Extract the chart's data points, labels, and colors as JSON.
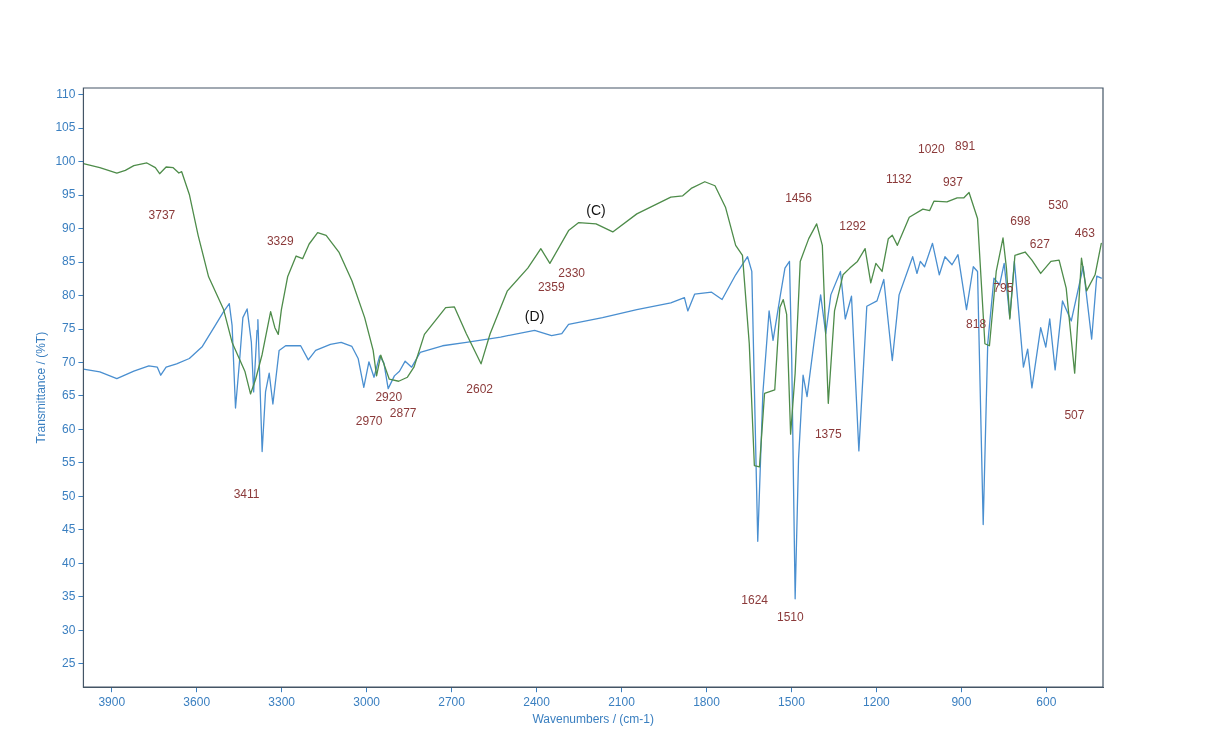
{
  "chart_data": {
    "type": "line",
    "xlabel": "Wavenumbers / (cm-1)",
    "ylabel": "Transmittance / (%T)",
    "xlim": [
      4000,
      400
    ],
    "ylim": [
      21.5,
      111
    ],
    "xticks": [
      3900,
      3600,
      3300,
      3000,
      2700,
      2400,
      2100,
      1800,
      1500,
      1200,
      900,
      600
    ],
    "yticks": [
      25,
      30,
      35,
      40,
      45,
      50,
      55,
      60,
      65,
      70,
      75,
      80,
      85,
      90,
      95,
      100,
      105,
      110
    ],
    "grid": false,
    "legend": false,
    "marker": "none",
    "line_style": "solid",
    "series": [
      {
        "name": "(C)",
        "color": "#4e8c4a",
        "x": [
          4000,
          3942,
          3882,
          3852,
          3822,
          3776,
          3746,
          3731,
          3708,
          3683,
          3663,
          3653,
          3626,
          3595,
          3558,
          3505,
          3475,
          3430,
          3410,
          3392,
          3369,
          3339,
          3324,
          3312,
          3301,
          3279,
          3249,
          3226,
          3203,
          3173,
          3143,
          3098,
          3052,
          3007,
          2977,
          2965,
          2950,
          2935,
          2920,
          2887,
          2856,
          2833,
          2796,
          2721,
          2690,
          2648,
          2596,
          2564,
          2503,
          2431,
          2385,
          2353,
          2287,
          2251,
          2190,
          2131,
          2046,
          1926,
          1884,
          1854,
          1806,
          1770,
          1733,
          1697,
          1673,
          1649,
          1631,
          1613,
          1595,
          1559,
          1541,
          1529,
          1517,
          1503,
          1487,
          1469,
          1439,
          1411,
          1391,
          1370,
          1348,
          1318,
          1294,
          1267,
          1240,
          1220,
          1202,
          1180,
          1158,
          1144,
          1126,
          1084,
          1036,
          1012,
          997,
          951,
          915,
          891,
          873,
          843,
          817,
          801,
          777,
          753,
          741,
          729,
          711,
          675,
          651,
          620,
          584,
          555,
          530,
          500,
          476,
          458,
          428,
          406
        ],
        "values": [
          99.7,
          99.1,
          98.3,
          98.7,
          99.4,
          99.8,
          99.1,
          98.2,
          99.2,
          99.1,
          98.3,
          98.5,
          95.1,
          89.0,
          82.8,
          77.9,
          73.0,
          68.7,
          65.3,
          67.5,
          71.2,
          77.6,
          75.2,
          74.2,
          77.9,
          82.8,
          85.9,
          85.5,
          87.7,
          89.4,
          89.0,
          86.5,
          82.2,
          76.7,
          71.8,
          68.0,
          71.1,
          69.3,
          67.5,
          67.2,
          67.8,
          69.3,
          74.2,
          78.2,
          78.3,
          74.3,
          69.8,
          74.3,
          80.7,
          84.1,
          87.0,
          84.8,
          89.7,
          90.9,
          90.7,
          89.5,
          92.2,
          94.7,
          94.9,
          96.0,
          97.0,
          96.4,
          93.2,
          87.5,
          86.0,
          72.8,
          54.6,
          54.4,
          65.4,
          65.9,
          78.2,
          79.4,
          77.2,
          59.3,
          68.4,
          85.1,
          88.5,
          90.7,
          87.5,
          63.9,
          77.7,
          83.1,
          84.1,
          85.1,
          87.0,
          81.9,
          84.8,
          83.6,
          88.5,
          89.0,
          87.5,
          91.7,
          92.9,
          92.7,
          94.1,
          94.0,
          94.6,
          94.6,
          95.4,
          91.5,
          72.8,
          72.5,
          83.6,
          88.6,
          84.1,
          76.5,
          86.0,
          86.5,
          85.3,
          83.3,
          85.1,
          85.3,
          81.1,
          68.4,
          85.6,
          80.7,
          83.1,
          87.8
        ]
      },
      {
        "name": "(D)",
        "color": "#4a8fd0",
        "x": [
          4000,
          3942,
          3882,
          3822,
          3769,
          3739,
          3727,
          3708,
          3671,
          3626,
          3580,
          3535,
          3505,
          3485,
          3475,
          3463,
          3448,
          3437,
          3422,
          3407,
          3399,
          3387,
          3384,
          3369,
          3357,
          3344,
          3331,
          3309,
          3286,
          3233,
          3206,
          3180,
          3128,
          3090,
          3052,
          3030,
          3010,
          2992,
          2974,
          2954,
          2939,
          2924,
          2902,
          2884,
          2864,
          2841,
          2811,
          2732,
          2648,
          2527,
          2407,
          2347,
          2311,
          2287,
          2167,
          2046,
          1926,
          1878,
          1866,
          1842,
          1782,
          1745,
          1697,
          1655,
          1640,
          1619,
          1601,
          1579,
          1565,
          1539,
          1523,
          1507,
          1499,
          1487,
          1475,
          1459,
          1445,
          1421,
          1397,
          1379,
          1361,
          1327,
          1310,
          1288,
          1262,
          1234,
          1198,
          1174,
          1144,
          1120,
          1072,
          1057,
          1045,
          1030,
          1002,
          978,
          958,
          933,
          912,
          882,
          858,
          843,
          823,
          807,
          785,
          765,
          749,
          729,
          713,
          681,
          666,
          651,
          620,
          602,
          588,
          569,
          543,
          512,
          470,
          440,
          422,
          406
        ],
        "values": [
          69.0,
          68.6,
          67.6,
          68.7,
          69.5,
          69.3,
          68.1,
          69.3,
          69.8,
          70.6,
          72.4,
          75.5,
          77.6,
          78.8,
          75.5,
          63.2,
          70.6,
          76.7,
          78.0,
          73.0,
          65.6,
          74.8,
          76.4,
          56.7,
          65.6,
          68.4,
          63.8,
          71.8,
          72.5,
          72.5,
          70.4,
          71.8,
          72.7,
          73.0,
          72.4,
          70.6,
          66.3,
          70.1,
          67.8,
          71.0,
          69.9,
          66.1,
          68.0,
          68.7,
          70.2,
          69.3,
          71.5,
          72.5,
          73.0,
          73.8,
          74.8,
          74.0,
          74.3,
          75.7,
          76.7,
          77.9,
          78.9,
          79.7,
          77.7,
          80.2,
          80.5,
          79.4,
          83.1,
          85.8,
          83.6,
          43.3,
          65.4,
          77.7,
          73.3,
          80.1,
          84.1,
          85.1,
          70.3,
          34.7,
          55.6,
          68.1,
          64.9,
          72.8,
          80.1,
          74.3,
          80.1,
          83.6,
          76.5,
          79.9,
          56.8,
          78.4,
          79.2,
          82.4,
          70.3,
          80.1,
          85.8,
          83.3,
          85.1,
          84.3,
          87.8,
          83.1,
          85.8,
          84.6,
          86.1,
          77.9,
          84.3,
          83.6,
          45.8,
          72.8,
          82.6,
          81.6,
          84.8,
          76.7,
          85.1,
          69.3,
          72.0,
          66.2,
          75.2,
          72.3,
          76.5,
          68.9,
          79.2,
          76.2,
          84.3,
          73.5,
          82.9,
          82.6
        ]
      }
    ],
    "annotations": [
      "3737",
      "3329",
      "3411",
      "2920",
      "2970",
      "2877",
      "2602",
      "2330",
      "2359",
      "1456",
      "1292",
      "1132",
      "1020",
      "891",
      "937",
      "530",
      "698",
      "463",
      "627",
      "795",
      "818",
      "1375",
      "507",
      "1624",
      "1510"
    ]
  }
}
